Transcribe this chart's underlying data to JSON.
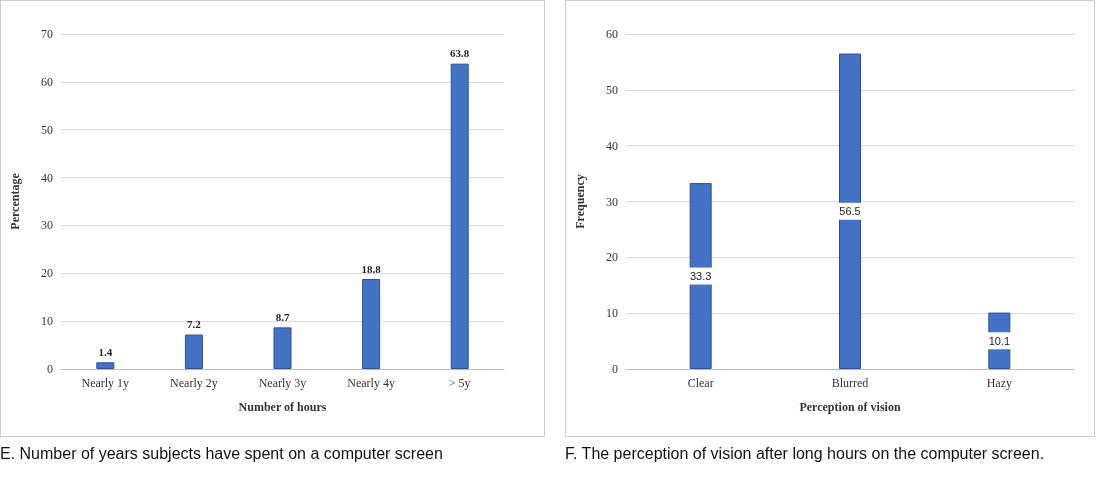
{
  "chart_data": [
    {
      "type": "bar",
      "categories": [
        "Nearly 1y",
        "Nearly 2y",
        "Nearly 3y",
        "Nearly 4y",
        "> 5y"
      ],
      "values": [
        1.4,
        7.2,
        8.7,
        18.8,
        63.8
      ],
      "color": "#4472c4",
      "xlabel": "Number of hours",
      "ylabel": "Percentage",
      "ylim": [
        0,
        70
      ],
      "yticks": [
        0,
        10,
        20,
        30,
        40,
        50,
        60,
        70
      ],
      "grid": "y",
      "data_labels": true,
      "annotations": [
        "E. Number of years subjects have spent on a computer screen"
      ]
    },
    {
      "type": "bar",
      "categories": [
        "Clear",
        "Blurred",
        "Hazy"
      ],
      "values": [
        33.3,
        56.5,
        10.1
      ],
      "color": "#4472c4",
      "xlabel": "Perception of vision",
      "ylabel": "Frequency",
      "ylim": [
        0,
        60
      ],
      "yticks": [
        0,
        10,
        20,
        30,
        40,
        50,
        60
      ],
      "grid": "y",
      "data_labels": true,
      "annotations": [
        "F. The perception of vision after long hours on the computer screen."
      ]
    }
  ]
}
